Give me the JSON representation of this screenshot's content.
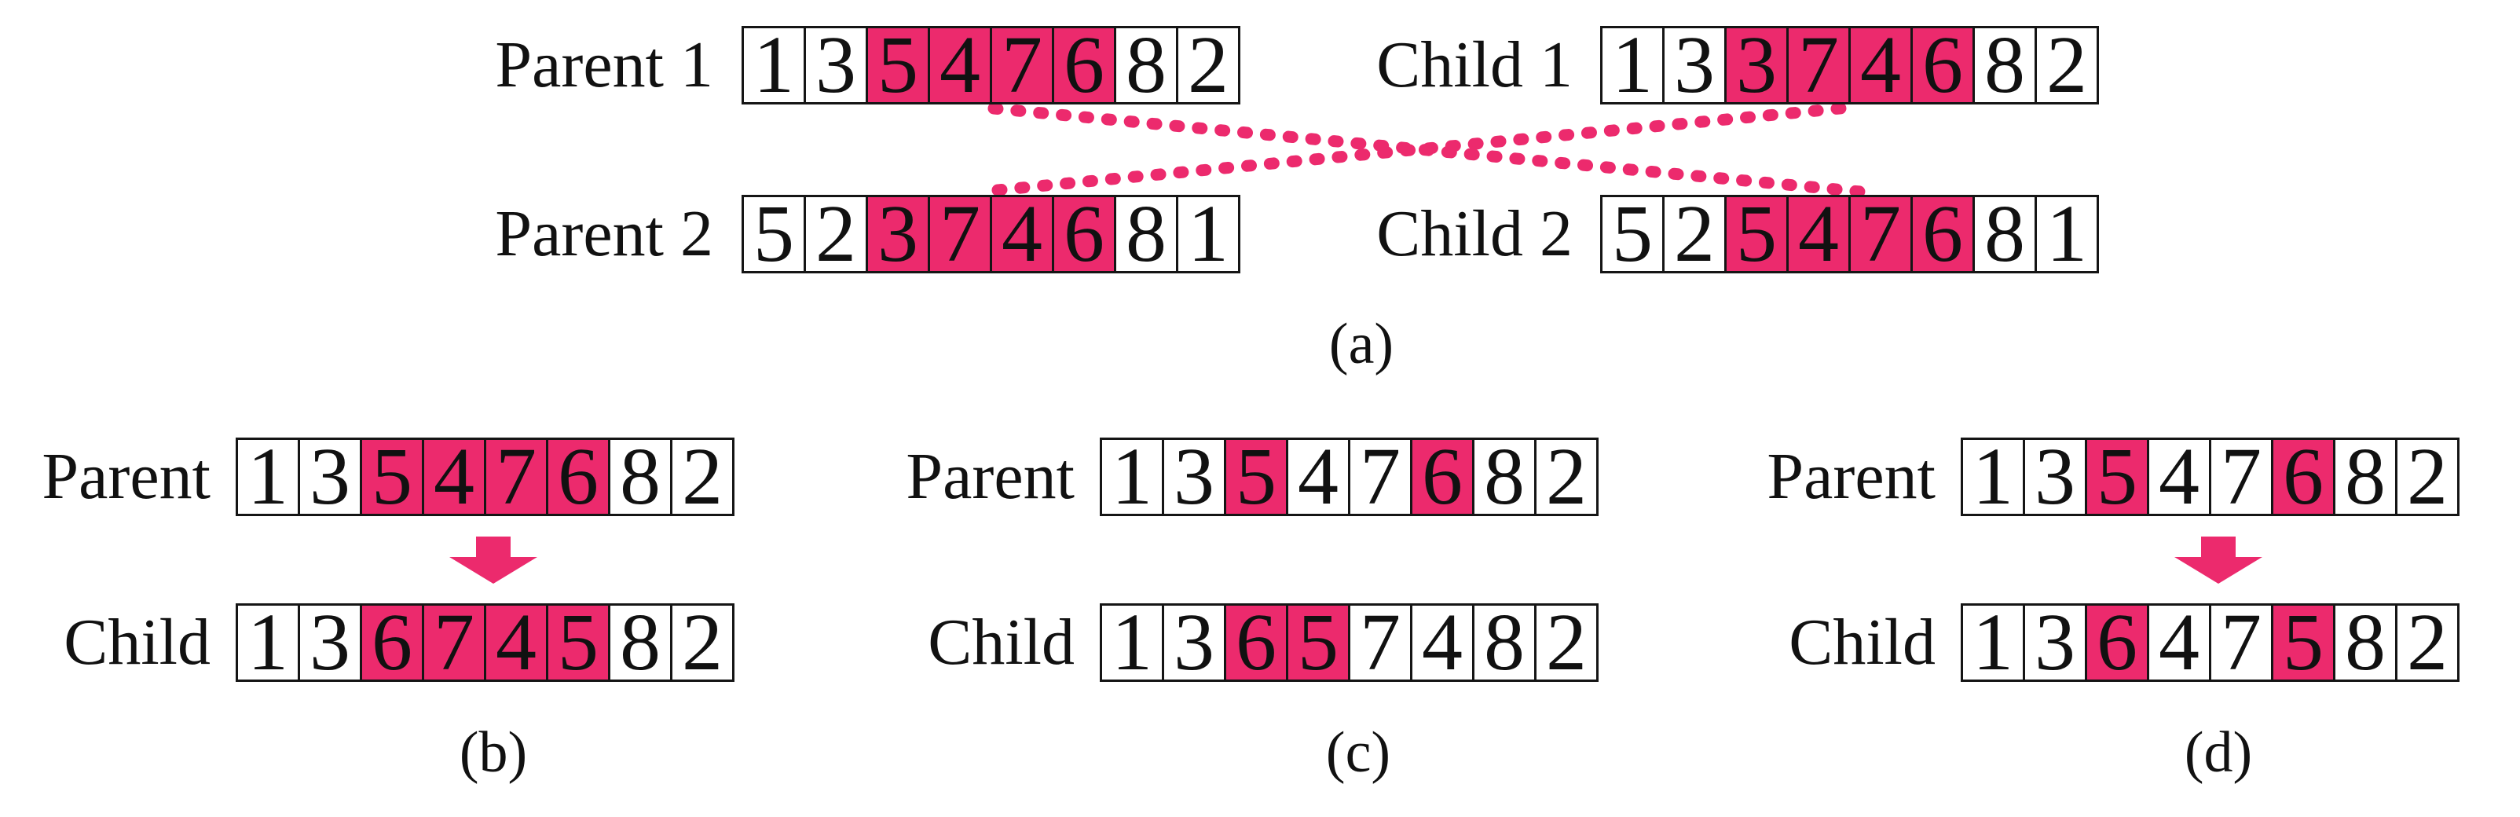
{
  "figure": {
    "highlight_color": "#EC2A6D",
    "line_color": "#EC2A6D",
    "cell_border_color": "#151515",
    "sections": {
      "a": {
        "caption": "(a)",
        "rows": [
          {
            "id": "parent1",
            "label": "Parent 1",
            "values": [
              "1",
              "3",
              "5",
              "4",
              "7",
              "6",
              "8",
              "2"
            ],
            "highlight": [
              2,
              3,
              4,
              5
            ]
          },
          {
            "id": "child1",
            "label": "Child 1",
            "values": [
              "1",
              "3",
              "3",
              "7",
              "4",
              "6",
              "8",
              "2"
            ],
            "highlight": [
              2,
              3,
              4,
              5
            ]
          },
          {
            "id": "parent2",
            "label": "Parent 2",
            "values": [
              "5",
              "2",
              "3",
              "7",
              "4",
              "6",
              "8",
              "1"
            ],
            "highlight": [
              2,
              3,
              4,
              5
            ]
          },
          {
            "id": "child2",
            "label": "Child 2",
            "values": [
              "5",
              "2",
              "5",
              "4",
              "7",
              "6",
              "8",
              "1"
            ],
            "highlight": [
              2,
              3,
              4,
              5
            ]
          }
        ]
      },
      "b": {
        "caption": "(b)",
        "has_arrow": true,
        "parent": {
          "label": "Parent",
          "values": [
            "1",
            "3",
            "5",
            "4",
            "7",
            "6",
            "8",
            "2"
          ],
          "highlight": [
            2,
            3,
            4,
            5
          ]
        },
        "child": {
          "label": "Child",
          "values": [
            "1",
            "3",
            "6",
            "7",
            "4",
            "5",
            "8",
            "2"
          ],
          "highlight": [
            2,
            3,
            4,
            5
          ]
        }
      },
      "c": {
        "caption": "(c)",
        "has_arrow": false,
        "parent": {
          "label": "Parent",
          "values": [
            "1",
            "3",
            "5",
            "4",
            "7",
            "6",
            "8",
            "2"
          ],
          "highlight": [
            2,
            5
          ]
        },
        "child": {
          "label": "Child",
          "values": [
            "1",
            "3",
            "6",
            "5",
            "7",
            "4",
            "8",
            "2"
          ],
          "highlight": [
            2,
            3
          ]
        }
      },
      "d": {
        "caption": "(d)",
        "has_arrow": true,
        "parent": {
          "label": "Parent",
          "values": [
            "1",
            "3",
            "5",
            "4",
            "7",
            "6",
            "8",
            "2"
          ],
          "highlight": [
            2,
            5
          ]
        },
        "child": {
          "label": "Child",
          "values": [
            "1",
            "3",
            "6",
            "4",
            "7",
            "5",
            "8",
            "2"
          ],
          "highlight": [
            2,
            5
          ]
        }
      }
    }
  }
}
